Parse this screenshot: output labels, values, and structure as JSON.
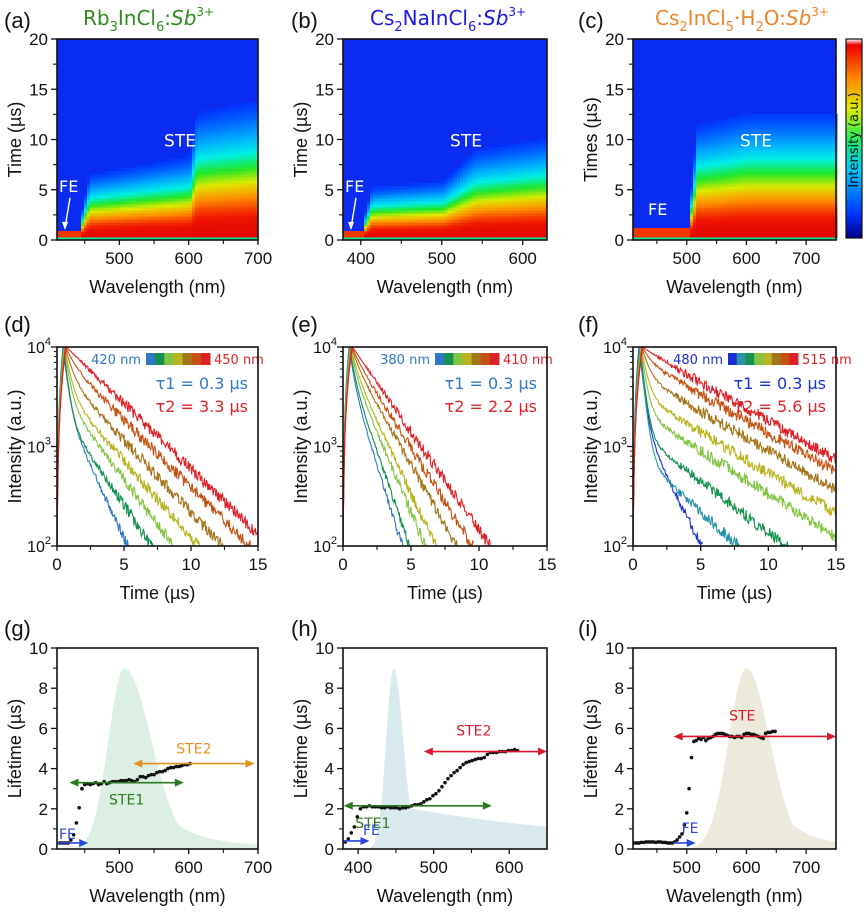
{
  "figure": {
    "panels": [
      "(a)",
      "(b)",
      "(c)",
      "(d)",
      "(e)",
      "(f)",
      "(g)",
      "(h)",
      "(i)"
    ]
  },
  "materials": [
    {
      "base": "Rb",
      "s1": "3",
      "mid": "InCl",
      "s2": "6",
      "tail": ":",
      "dopant": "Sb",
      "charge": "3+",
      "color": "#2e8b1e"
    },
    {
      "base": "Cs",
      "s1": "2",
      "mid": "NaInCl",
      "s2": "6",
      "tail": ":",
      "dopant": "Sb",
      "charge": "3+",
      "color": "#1a1adf"
    },
    {
      "base": "Cs",
      "s1": "2",
      "mid": "InCl",
      "s2": "5",
      "tail": "·H",
      "s3": "2",
      "tail2": "O:",
      "dopant": "Sb",
      "charge": "3+",
      "color": "#e8862e"
    }
  ],
  "chart_data": [
    {
      "panel": "a",
      "type": "heatmap",
      "title": "Rb3InCl6:Sb3+",
      "xlabel": "Wavelength (nm)",
      "ylabel": "Time (µs)",
      "xlim": [
        410,
        700
      ],
      "ylim": [
        0,
        20
      ],
      "xticks": [
        500,
        600,
        700
      ],
      "yticks": [
        0,
        5,
        10,
        15,
        20
      ],
      "annotations": [
        "STE",
        "FE"
      ],
      "ste_onset_nm": 450,
      "decay_front_us": {
        "x": [
          410,
          440,
          455,
          600,
          610,
          700
        ],
        "y": [
          1,
          1,
          5,
          6.5,
          10,
          11
        ]
      }
    },
    {
      "panel": "b",
      "type": "heatmap",
      "title": "Cs2NaInCl6:Sb3+",
      "xlabel": "Wavelength (nm)",
      "ylabel": "Time (µs)",
      "xlim": [
        378,
        630
      ],
      "ylim": [
        0,
        20
      ],
      "xticks": [
        400,
        500,
        600
      ],
      "yticks": [
        0,
        5,
        10,
        15,
        20
      ],
      "annotations": [
        "STE",
        "FE"
      ],
      "ste_onset_nm": 410,
      "decay_front_us": {
        "x": [
          378,
          400,
          412,
          500,
          540,
          630
        ],
        "y": [
          1,
          1,
          4,
          4.5,
          7,
          8
        ]
      }
    },
    {
      "panel": "c",
      "type": "heatmap",
      "title": "Cs2InCl5·H2O:Sb3+",
      "xlabel": "Wavelength (nm)",
      "ylabel": "Times (µs)",
      "xlim": [
        410,
        750
      ],
      "ylim": [
        0,
        20
      ],
      "xticks": [
        500,
        600,
        700
      ],
      "yticks": [
        0,
        5,
        10,
        15,
        20
      ],
      "annotations": [
        "STE",
        "FE"
      ],
      "colorbar_label": "Intensity (a.u.)",
      "ste_onset_nm": 510,
      "decay_front_us": {
        "x": [
          410,
          500,
          515,
          600,
          750
        ],
        "y": [
          1.2,
          1.2,
          9,
          10,
          10
        ]
      }
    },
    {
      "panel": "d",
      "type": "line",
      "xlabel": "Time (µs)",
      "ylabel": "Intensity (a.u.)",
      "xlim": [
        0,
        15
      ],
      "ylim": [
        100,
        10000
      ],
      "yscale": "log",
      "xticks": [
        0,
        5,
        10,
        15
      ],
      "yticks": [
        100,
        1000,
        10000
      ],
      "legend": {
        "start": "420 nm",
        "end": "450 nm"
      },
      "tau1": "τ1 = 0.3 µs",
      "tau2": "τ2 = 3.3 µs",
      "series": [
        {
          "color": "#2f78c4",
          "fast": 0.3,
          "slow": 1.5,
          "frac": 0.25
        },
        {
          "color": "#13914f",
          "fast": 0.3,
          "slow": 2.2,
          "frac": 0.2
        },
        {
          "color": "#82c341",
          "fast": 0.35,
          "slow": 2.4,
          "frac": 0.3
        },
        {
          "color": "#b9b520",
          "fast": 0.4,
          "slow": 2.8,
          "frac": 0.35
        },
        {
          "color": "#a5751b",
          "fast": 0.5,
          "slow": 3.0,
          "frac": 0.5
        },
        {
          "color": "#c45213",
          "fast": 0.6,
          "slow": 3.2,
          "frac": 0.72
        },
        {
          "color": "#de2128",
          "fast": 0.8,
          "slow": 3.3,
          "frac": 1.0
        }
      ]
    },
    {
      "panel": "e",
      "type": "line",
      "xlabel": "Time (µs)",
      "ylabel": "Intensity (a.u.)",
      "xlim": [
        0,
        15
      ],
      "ylim": [
        100,
        10000
      ],
      "yscale": "log",
      "xticks": [
        0,
        5,
        10,
        15
      ],
      "yticks": [
        100,
        1000,
        10000
      ],
      "legend": {
        "start": "380 nm",
        "end": "410 nm"
      },
      "tau1": "τ1 = 0.3 µs",
      "tau2": "τ2 = 2.2 µs",
      "series": [
        {
          "color": "#2f78c4",
          "fast": 0.3,
          "slow": 1.0,
          "frac": 0.5
        },
        {
          "color": "#13914f",
          "fast": 0.3,
          "slow": 1.1,
          "frac": 0.55
        },
        {
          "color": "#82c341",
          "fast": 0.35,
          "slow": 1.35,
          "frac": 0.6
        },
        {
          "color": "#b9b520",
          "fast": 0.4,
          "slow": 1.5,
          "frac": 0.65
        },
        {
          "color": "#a5751b",
          "fast": 0.45,
          "slow": 1.8,
          "frac": 0.75
        },
        {
          "color": "#c45213",
          "fast": 0.5,
          "slow": 2.0,
          "frac": 0.85
        },
        {
          "color": "#de2128",
          "fast": 0.6,
          "slow": 2.2,
          "frac": 1.0
        }
      ]
    },
    {
      "panel": "f",
      "type": "line",
      "xlabel": "Time (µs)",
      "ylabel": "Intensity (a.u.)",
      "xlim": [
        0,
        15
      ],
      "ylim": [
        100,
        10000
      ],
      "yscale": "log",
      "xticks": [
        0,
        5,
        10,
        15
      ],
      "yticks": [
        100,
        1000,
        10000
      ],
      "legend": {
        "start": "480 nm",
        "end": "515 nm"
      },
      "tau1": "τ1 = 0.3 µs",
      "tau2": "τ2 = 5.6 µs",
      "series": [
        {
          "color": "#1a2fd0",
          "fast": 0.3,
          "slow": 1.6,
          "frac": 0.18
        },
        {
          "color": "#2a93ab",
          "fast": 0.3,
          "slow": 3.5,
          "frac": 0.08
        },
        {
          "color": "#13914f",
          "fast": 0.3,
          "slow": 4.2,
          "frac": 0.13
        },
        {
          "color": "#82c341",
          "fast": 0.35,
          "slow": 5.0,
          "frac": 0.22
        },
        {
          "color": "#b9b520",
          "fast": 0.4,
          "slow": 5.3,
          "frac": 0.32
        },
        {
          "color": "#a5751b",
          "fast": 0.5,
          "slow": 5.5,
          "frac": 0.5
        },
        {
          "color": "#c45213",
          "fast": 0.6,
          "slow": 5.6,
          "frac": 0.72
        },
        {
          "color": "#de2128",
          "fast": 0.8,
          "slow": 5.6,
          "frac": 0.95
        }
      ]
    },
    {
      "panel": "g",
      "type": "scatter",
      "xlabel": "Wavelength (nm)",
      "ylabel": "Lifetime (µs)",
      "xlim": [
        410,
        700
      ],
      "ylim": [
        0,
        10
      ],
      "xticks": [
        500,
        600,
        700
      ],
      "yticks": [
        0,
        2,
        4,
        6,
        8,
        10
      ],
      "band": {
        "color": "#dcefe3",
        "peak_nm": 507,
        "peak_val": 9.0,
        "left_w": 32,
        "right_w": 55
      },
      "points": {
        "x": [
          414,
          418,
          422,
          426,
          430,
          434,
          438,
          442,
          446,
          450,
          454,
          458,
          462,
          466,
          470,
          474,
          478,
          482,
          486,
          490,
          494,
          498,
          502,
          506,
          510,
          514,
          518,
          522,
          526,
          530,
          534,
          538,
          542,
          546,
          550,
          554,
          558,
          562,
          566,
          570,
          574,
          578,
          582,
          586,
          590,
          594,
          598,
          602
        ],
        "y": [
          0.3,
          0.3,
          0.3,
          0.3,
          0.45,
          0.7,
          1.3,
          2.05,
          3.0,
          3.2,
          3.25,
          3.2,
          3.25,
          3.3,
          3.2,
          3.25,
          3.35,
          3.25,
          3.3,
          3.35,
          3.35,
          3.35,
          3.4,
          3.4,
          3.4,
          3.45,
          3.4,
          3.35,
          3.45,
          3.6,
          3.6,
          3.55,
          3.65,
          3.7,
          3.7,
          3.8,
          3.85,
          3.85,
          3.9,
          4.0,
          4.05,
          4.05,
          4.1,
          4.1,
          4.15,
          4.2,
          4.2,
          4.25
        ]
      },
      "arrows": [
        {
          "label": "FE",
          "color": "#2b47d8",
          "from": 410,
          "to": 455,
          "y": 0.3,
          "heads": "right"
        },
        {
          "label": "STE1",
          "color": "#2a7a1f",
          "from": 428,
          "to": 593,
          "y": 3.3,
          "heads": "both"
        },
        {
          "label": "STE2",
          "color": "#e3901e",
          "from": 520,
          "to": 695,
          "y": 4.25,
          "heads": "both"
        }
      ]
    },
    {
      "panel": "h",
      "type": "scatter",
      "xlabel": "Wavelength (nm)",
      "ylabel": "Lifetime (µs)",
      "xlim": [
        380,
        650
      ],
      "ylim": [
        0,
        10
      ],
      "xticks": [
        400,
        500,
        600
      ],
      "yticks": [
        0,
        2,
        4,
        6,
        8,
        10
      ],
      "band": {
        "color": "#d9eaee",
        "peak_nm": 447,
        "peak_val": 9.0,
        "left_w": 14,
        "right_w": 18,
        "tail": 2.0
      },
      "points": {
        "x": [
          383,
          387,
          391,
          395,
          399,
          403,
          407,
          411,
          415,
          419,
          423,
          427,
          431,
          435,
          439,
          443,
          447,
          451,
          455,
          459,
          463,
          467,
          471,
          475,
          479,
          483,
          487,
          491,
          495,
          499,
          503,
          507,
          511,
          515,
          519,
          523,
          527,
          531,
          535,
          539,
          543,
          547,
          551,
          555,
          559,
          563,
          567,
          571,
          575,
          579,
          583,
          587,
          591,
          595,
          599,
          603,
          607,
          611
        ],
        "y": [
          0.35,
          0.5,
          0.8,
          1.1,
          1.6,
          2.0,
          2.1,
          2.1,
          2.15,
          2.1,
          2.1,
          2.1,
          2.05,
          2.05,
          2.1,
          2.05,
          2.05,
          2.05,
          2.0,
          2.05,
          2.05,
          2.1,
          2.15,
          2.2,
          2.2,
          2.25,
          2.35,
          2.45,
          2.5,
          2.65,
          2.75,
          2.9,
          3.1,
          3.3,
          3.5,
          3.65,
          3.8,
          3.9,
          4.05,
          4.2,
          4.3,
          4.35,
          4.4,
          4.45,
          4.5,
          4.5,
          4.55,
          4.7,
          4.8,
          4.8,
          4.8,
          4.85,
          4.85,
          4.85,
          4.9,
          4.9,
          4.95,
          4.9
        ]
      },
      "arrows": [
        {
          "label": "FE",
          "color": "#2b47d8",
          "from": 380,
          "to": 415,
          "y": 0.4,
          "heads": "right"
        },
        {
          "label": "STE1",
          "color": "#2a7a1f",
          "from": 381,
          "to": 577,
          "y": 2.15,
          "heads": "both"
        },
        {
          "label": "STE2",
          "color": "#d7192a",
          "from": 487,
          "to": 650,
          "y": 4.85,
          "heads": "both"
        }
      ]
    },
    {
      "panel": "i",
      "type": "scatter",
      "xlabel": "Wavelength (nm)",
      "ylabel": "Lifetime (µs)",
      "xlim": [
        410,
        750
      ],
      "ylim": [
        0,
        10
      ],
      "xticks": [
        500,
        600,
        700
      ],
      "yticks": [
        0,
        2,
        4,
        6,
        8,
        10
      ],
      "band": {
        "color": "#ede9db",
        "peak_nm": 600,
        "peak_val": 9.0,
        "left_w": 42,
        "right_w": 55
      },
      "points": {
        "x": [
          412,
          416,
          420,
          424,
          428,
          432,
          436,
          440,
          444,
          448,
          452,
          456,
          460,
          464,
          468,
          472,
          476,
          480,
          484,
          488,
          492,
          496,
          500,
          504,
          508,
          512,
          516,
          520,
          524,
          528,
          532,
          536,
          540,
          544,
          548,
          552,
          556,
          560,
          564,
          568,
          572,
          576,
          580,
          584,
          588,
          592,
          596,
          600,
          604,
          608,
          612,
          616,
          620,
          624,
          628,
          632,
          636,
          640,
          644,
          648
        ],
        "y": [
          0.3,
          0.3,
          0.3,
          0.33,
          0.33,
          0.35,
          0.35,
          0.35,
          0.35,
          0.33,
          0.35,
          0.35,
          0.33,
          0.33,
          0.3,
          0.3,
          0.3,
          0.35,
          0.45,
          0.6,
          0.75,
          1.2,
          1.8,
          3.0,
          4.55,
          5.35,
          5.4,
          5.5,
          5.45,
          5.55,
          5.4,
          5.5,
          5.55,
          5.6,
          5.7,
          5.75,
          5.75,
          5.75,
          5.7,
          5.65,
          5.6,
          5.6,
          5.55,
          5.6,
          5.6,
          5.55,
          5.7,
          5.75,
          5.75,
          5.7,
          5.7,
          5.65,
          5.6,
          5.55,
          5.5,
          5.75,
          5.8,
          5.8,
          5.85,
          5.85
        ]
      },
      "arrows": [
        {
          "label": "FE",
          "color": "#2b47d8",
          "from": 478,
          "to": 515,
          "y": 0.3,
          "heads": "right"
        },
        {
          "label": "STE",
          "color": "#d7192a",
          "from": 478,
          "to": 750,
          "y": 5.6,
          "heads": "both"
        }
      ]
    }
  ]
}
